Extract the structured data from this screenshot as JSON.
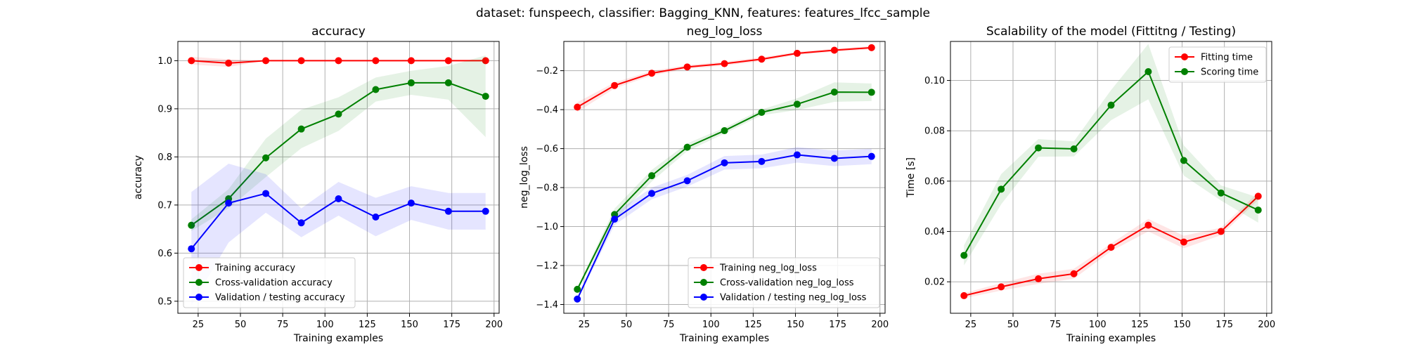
{
  "suptitle": "dataset: funspeech, classifier: Bagging_KNN, features: features_lfcc_sample",
  "chart_data": [
    {
      "type": "line",
      "title": "accuracy",
      "xlabel": "Training examples",
      "ylabel": "accuracy",
      "xlim": [
        13,
        203
      ],
      "ylim": [
        0.475,
        1.04
      ],
      "xticks": [
        25,
        50,
        75,
        100,
        125,
        150,
        175,
        200
      ],
      "yticks": [
        0.5,
        0.6,
        0.7,
        0.8,
        0.9,
        1.0
      ],
      "ytick_labels": [
        "0.5",
        "0.6",
        "0.7",
        "0.8",
        "0.9",
        "1.0"
      ],
      "grid": true,
      "legend_position": "lower-left",
      "x": [
        21,
        43,
        65,
        86,
        108,
        130,
        151,
        173,
        195
      ],
      "series": [
        {
          "name": "Training accuracy",
          "color": "#ff0000",
          "values": [
            1.0,
            0.995,
            1.0,
            1.0,
            1.0,
            1.0,
            1.0,
            1.0,
            1.0
          ],
          "band": [
            0.008,
            0.008,
            0.0,
            0.0,
            0.0,
            0.0,
            0.0,
            0.0,
            0.0
          ]
        },
        {
          "name": "Cross-validation accuracy",
          "color": "#008000",
          "values": [
            0.658,
            0.713,
            0.798,
            0.858,
            0.889,
            0.94,
            0.954,
            0.954,
            0.926
          ],
          "band": [
            0.012,
            0.02,
            0.04,
            0.04,
            0.035,
            0.025,
            0.025,
            0.035,
            0.085
          ]
        },
        {
          "name": "Validation / testing accuracy",
          "color": "#0000ff",
          "values": [
            0.609,
            0.704,
            0.724,
            0.663,
            0.713,
            0.675,
            0.704,
            0.687,
            0.687
          ],
          "band": [
            0.118,
            0.082,
            0.04,
            0.03,
            0.035,
            0.04,
            0.035,
            0.038,
            0.038
          ]
        }
      ]
    },
    {
      "type": "line",
      "title": "neg_log_loss",
      "xlabel": "Training examples",
      "ylabel": "neg_log_loss",
      "xlim": [
        13,
        203
      ],
      "ylim": [
        -1.445,
        -0.05
      ],
      "xticks": [
        25,
        50,
        75,
        100,
        125,
        150,
        175,
        200
      ],
      "yticks": [
        -1.4,
        -1.2,
        -1.0,
        -0.8,
        -0.6,
        -0.4,
        -0.2
      ],
      "ytick_labels": [
        "−1.4",
        "−1.2",
        "−1.0",
        "−0.8",
        "−0.6",
        "−0.4",
        "−0.2"
      ],
      "grid": true,
      "legend_position": "lower-right",
      "x": [
        21,
        43,
        65,
        86,
        108,
        130,
        151,
        173,
        195
      ],
      "series": [
        {
          "name": "Training neg_log_loss",
          "color": "#ff0000",
          "values": [
            -0.387,
            -0.276,
            -0.213,
            -0.181,
            -0.164,
            -0.141,
            -0.111,
            -0.095,
            -0.082
          ],
          "band": [
            0.025,
            0.015,
            0.012,
            0.01,
            0.01,
            0.01,
            0.008,
            0.008,
            0.008
          ]
        },
        {
          "name": "Cross-validation neg_log_loss",
          "color": "#008000",
          "values": [
            -1.322,
            -0.938,
            -0.739,
            -0.593,
            -0.508,
            -0.414,
            -0.372,
            -0.31,
            -0.311
          ],
          "band": [
            0.01,
            0.03,
            0.03,
            0.02,
            0.015,
            0.015,
            0.03,
            0.05,
            0.045
          ]
        },
        {
          "name": "Validation / testing neg_log_loss",
          "color": "#0000ff",
          "values": [
            -1.372,
            -0.962,
            -0.83,
            -0.765,
            -0.673,
            -0.666,
            -0.632,
            -0.65,
            -0.64
          ],
          "band": [
            0.01,
            0.03,
            0.03,
            0.03,
            0.035,
            0.035,
            0.04,
            0.04,
            0.04
          ]
        }
      ]
    },
    {
      "type": "line",
      "title": "Scalability of the model (Fittitng / Testing)",
      "xlabel": "Training examples",
      "ylabel": "Time [s]",
      "xlim": [
        13,
        203
      ],
      "ylim": [
        0.0075,
        0.1155
      ],
      "xticks": [
        25,
        50,
        75,
        100,
        125,
        150,
        175,
        200
      ],
      "yticks": [
        0.02,
        0.04,
        0.06,
        0.08,
        0.1
      ],
      "ytick_labels": [
        "0.02",
        "0.04",
        "0.06",
        "0.08",
        "0.10"
      ],
      "grid": true,
      "legend_position": "top-right",
      "x": [
        21,
        43,
        65,
        86,
        108,
        130,
        151,
        173,
        195
      ],
      "series": [
        {
          "name": "Fitting time",
          "color": "#ff0000",
          "values": [
            0.0145,
            0.018,
            0.0212,
            0.0232,
            0.0337,
            0.0425,
            0.0358,
            0.04,
            0.054
          ],
          "band": [
            0.001,
            0.0015,
            0.002,
            0.002,
            0.0015,
            0.0025,
            0.0025,
            0.0015,
            0.0015
          ]
        },
        {
          "name": "Scoring time",
          "color": "#008000",
          "values": [
            0.0305,
            0.0568,
            0.0732,
            0.0728,
            0.0902,
            0.1035,
            0.0682,
            0.0553,
            0.0485
          ],
          "band": [
            0.004,
            0.006,
            0.0035,
            0.003,
            0.006,
            0.011,
            0.006,
            0.003,
            0.005
          ]
        }
      ]
    }
  ]
}
